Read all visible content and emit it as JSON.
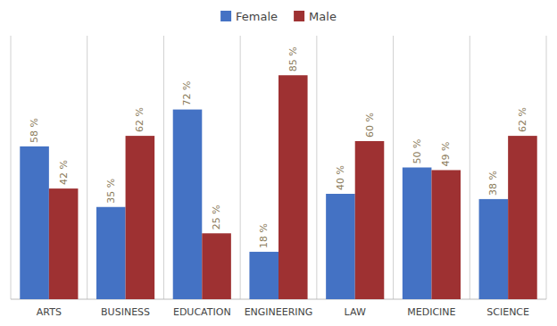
{
  "chart_data": {
    "type": "bar",
    "categories": [
      "ARTS",
      "BUSINESS",
      "EDUCATION",
      "ENGINEERING",
      "LAW",
      "MEDICINE",
      "SCIENCE"
    ],
    "series": [
      {
        "name": "Female",
        "color": "#4472C4",
        "values": [
          58,
          35,
          72,
          18,
          40,
          50,
          38
        ],
        "value_labels": [
          "58 %",
          "35 %",
          "72 %",
          "18 %",
          "40 %",
          "50 %",
          "38 %"
        ]
      },
      {
        "name": "Male",
        "color": "#9E3132",
        "values": [
          42,
          62,
          25,
          85,
          60,
          49,
          62
        ],
        "value_labels": [
          "42 %",
          "62 %",
          "25 %",
          "85 %",
          "60 %",
          "49 %",
          "62 %"
        ]
      }
    ],
    "ylim": [
      0,
      100
    ],
    "grid": false,
    "legend": "top",
    "data_labels": true,
    "tick_labels": "x"
  }
}
